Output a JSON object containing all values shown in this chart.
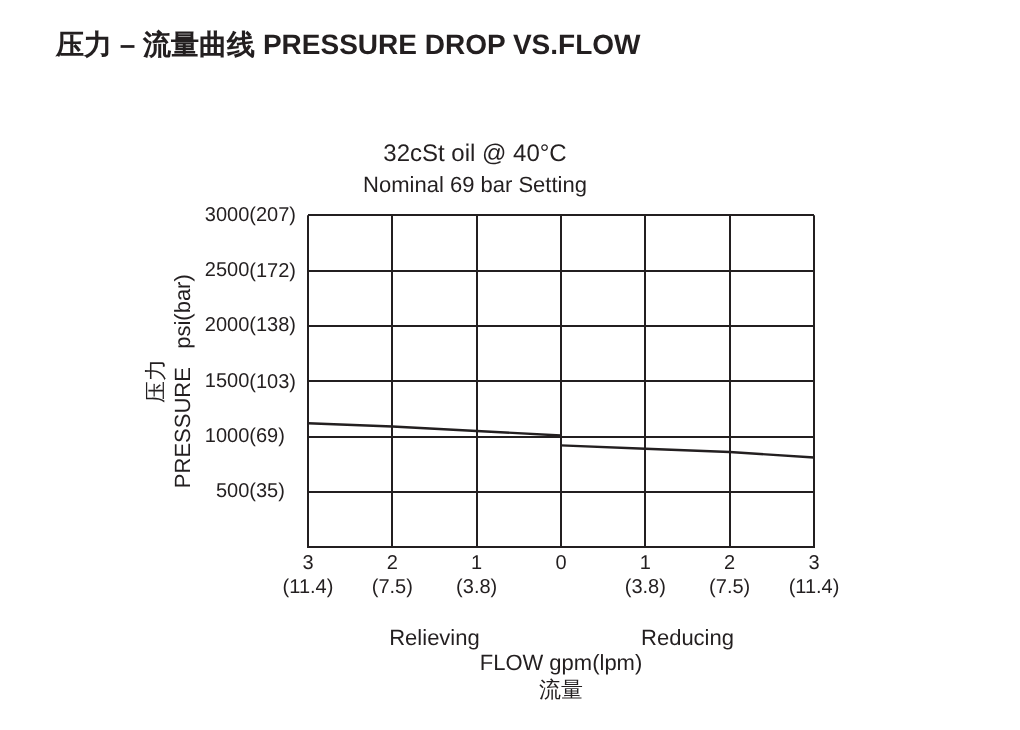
{
  "chart_data": {
    "type": "line",
    "title": "压力 – 流量曲线 PRESSURE DROP VS.FLOW",
    "subtitle": "32cSt oil @ 40°C",
    "xlabel": "FLOW gpm(lpm)\n流量",
    "ylabel": "压力\nPRESSURE   psi(bar)",
    "annotations": [
      "Nominal 69 bar Setting",
      "Relieving",
      "Reducing"
    ],
    "categories": [
      "3\n(11.4)",
      "2\n(7.5)",
      "1\n(3.8)",
      "0",
      "1\n(3.8)",
      "2\n(7.5)",
      "3\n(11.4)"
    ],
    "series": [
      {
        "color": "#231f20",
        "values": [
          1120,
          1090,
          1050,
          1010,
          null,
          null,
          null
        ]
      },
      {
        "color": "#231f20",
        "values": [
          null,
          null,
          null,
          920,
          890,
          860,
          810
        ]
      }
    ],
    "ylim": [
      0,
      3000
    ],
    "yticks": [
      500,
      1000,
      1500,
      2000,
      2500,
      3000
    ],
    "y2lim": [
      0,
      207
    ],
    "y2ticks": [
      {
        "value": 35,
        "label": "(35)"
      },
      {
        "value": 69,
        "label": "(69)"
      },
      {
        "value": 103,
        "label": "(103)"
      },
      {
        "value": 138,
        "label": "(138)"
      },
      {
        "value": 172,
        "label": "(172)"
      },
      {
        "value": 207,
        "label": "(207)"
      }
    ],
    "grid": true,
    "legend": false,
    "marker": "none",
    "line_style": "solid"
  }
}
